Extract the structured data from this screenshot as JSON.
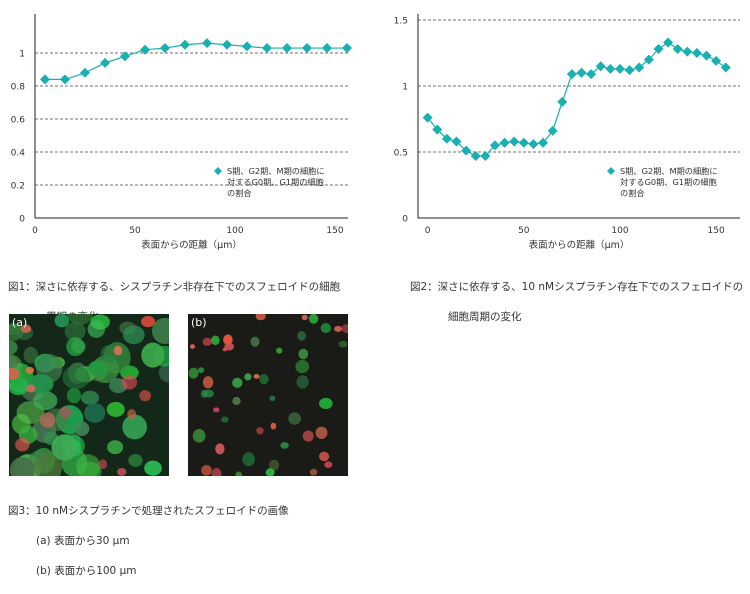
{
  "colors": {
    "series": "#1aafb0",
    "grid": "#444444",
    "axis": "#222222",
    "cell_green": "#3db55a",
    "cell_red": "#d8554a"
  },
  "figures": [
    {
      "caption": [
        "図1：深さに依存する、シスプラチン非存在下でのスフェロイドの細胞",
        "周期の変化"
      ]
    },
    {
      "caption": [
        "図2：深さに依存する、10 nMシスプラチン存在下でのスフェロイドの",
        "細胞周期の変化"
      ]
    },
    {
      "caption": "図3：10 nMシスプラチンで処理されたスフェロイドの画像",
      "sub_captions": [
        "(a) 表面から30 μm",
        "(b) 表面から100 μm"
      ],
      "panel_labels": [
        "(a)",
        "(b)"
      ],
      "panel_a_icon": "fluorescence-micrograph-dense-icon",
      "panel_b_icon": "fluorescence-micrograph-sparse-icon"
    }
  ],
  "chart_data": [
    {
      "type": "line",
      "xlabel": "表面からの距離（μm）",
      "xlim": [
        0,
        160
      ],
      "ylim": [
        0,
        1.2
      ],
      "xticks": [
        "0",
        "50",
        "100",
        "150"
      ],
      "xtick_values": [
        0,
        50,
        100,
        150
      ],
      "yticks": [
        "0",
        "0.2",
        "0.4",
        "0.6",
        "0.8",
        "1"
      ],
      "ytick_values": [
        0,
        0.2,
        0.4,
        0.6,
        0.8,
        1
      ],
      "grid": "horizontal dashed",
      "legend": {
        "placement": "lower-right",
        "lines": [
          "S期、G2期、M期の細胞に",
          "対するG0期、G1期の細胞",
          "の割合"
        ]
      },
      "series": [
        {
          "x": [
            5,
            15,
            25,
            35,
            45,
            55,
            65,
            75,
            86,
            96,
            106,
            116,
            126,
            136,
            146,
            156
          ],
          "values": [
            0.84,
            0.84,
            0.88,
            0.94,
            0.98,
            1.02,
            1.03,
            1.05,
            1.06,
            1.05,
            1.04,
            1.03,
            1.03,
            1.03,
            1.03,
            1.03
          ]
        }
      ]
    },
    {
      "type": "line",
      "xlabel": "表面からの距離（μm）",
      "xlim": [
        -5,
        165
      ],
      "ylim": [
        0,
        1.5
      ],
      "xticks": [
        "0",
        "50",
        "100",
        "150"
      ],
      "xtick_values": [
        0,
        50,
        100,
        150
      ],
      "yticks": [
        "0",
        "0.5",
        "1",
        "1.5"
      ],
      "ytick_values": [
        0,
        0.5,
        1,
        1.5
      ],
      "grid": "horizontal dashed",
      "legend": {
        "placement": "lower-right",
        "lines": [
          "S期、G2期、M期の細胞に",
          "対するG0期、G1期の細胞",
          "の割合"
        ]
      },
      "series": [
        {
          "x": [
            0,
            5,
            10,
            15,
            20,
            25,
            30,
            35,
            40,
            45,
            50,
            55,
            60,
            65,
            70,
            75,
            80,
            85,
            90,
            95,
            100,
            105,
            110,
            115,
            120,
            125,
            130,
            135,
            140,
            145,
            150,
            155
          ],
          "values": [
            0.76,
            0.67,
            0.6,
            0.58,
            0.51,
            0.47,
            0.47,
            0.55,
            0.57,
            0.58,
            0.57,
            0.56,
            0.57,
            0.66,
            0.88,
            1.09,
            1.1,
            1.09,
            1.15,
            1.13,
            1.13,
            1.12,
            1.14,
            1.2,
            1.28,
            1.33,
            1.28,
            1.26,
            1.25,
            1.23,
            1.19,
            1.14
          ]
        }
      ]
    }
  ]
}
